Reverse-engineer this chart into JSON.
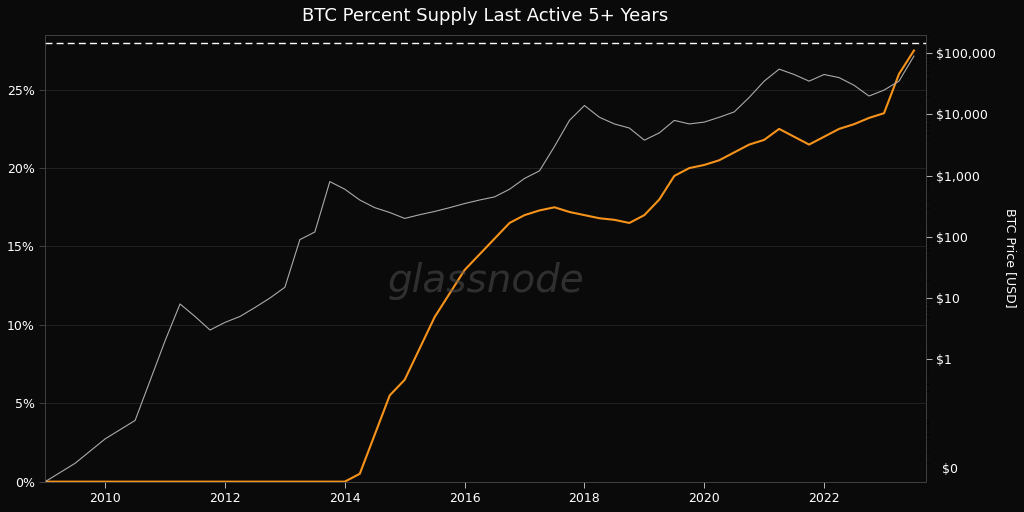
{
  "title": "BTC Percent Supply Last Active 5+ Years",
  "bg_color": "#0a0a0a",
  "text_color": "#ffffff",
  "watermark": "glassnode",
  "left_ylabel": "",
  "right_ylabel": "BTC Price [USD]",
  "left_yticks": [
    0,
    5,
    10,
    15,
    20,
    25
  ],
  "left_ytick_labels": [
    "0%",
    "5%",
    "10%",
    "15%",
    "20%",
    "25%"
  ],
  "left_ylim": [
    0,
    28.5
  ],
  "right_yticks_log": [
    0,
    1,
    10,
    100,
    1000,
    10000,
    100000
  ],
  "right_ytick_labels": [
    "$0",
    "$1",
    "$10",
    "$100",
    "$1,000",
    "$10,000",
    "$100,000"
  ],
  "dashed_line_y": 28.0,
  "orange_color": "#f7931a",
  "gray_color": "#aaaaaa",
  "orange_linewidth": 1.5,
  "gray_linewidth": 0.8,
  "years_x": [
    2009.0,
    2009.5,
    2010.0,
    2010.5,
    2011.0,
    2011.25,
    2011.5,
    2011.75,
    2012.0,
    2012.25,
    2012.5,
    2012.75,
    2013.0,
    2013.25,
    2013.5,
    2013.75,
    2014.0,
    2014.25,
    2014.5,
    2014.75,
    2015.0,
    2015.25,
    2015.5,
    2015.75,
    2016.0,
    2016.25,
    2016.5,
    2016.75,
    2017.0,
    2017.25,
    2017.5,
    2017.75,
    2018.0,
    2018.25,
    2018.5,
    2018.75,
    2019.0,
    2019.25,
    2019.5,
    2019.75,
    2020.0,
    2020.25,
    2020.5,
    2020.75,
    2021.0,
    2021.25,
    2021.5,
    2021.75,
    2022.0,
    2022.25,
    2022.5,
    2022.75,
    2023.0,
    2023.25,
    2023.5
  ],
  "orange_y": [
    0.0,
    0.0,
    0.0,
    0.0,
    0.0,
    0.0,
    0.0,
    0.0,
    0.0,
    0.0,
    0.0,
    0.0,
    0.0,
    0.0,
    0.0,
    0.0,
    0.0,
    0.5,
    3.0,
    5.5,
    6.5,
    8.5,
    10.5,
    12.0,
    13.5,
    14.5,
    15.5,
    16.5,
    17.0,
    17.3,
    17.5,
    17.2,
    17.0,
    16.8,
    16.7,
    16.5,
    17.0,
    18.0,
    19.5,
    20.0,
    20.2,
    20.5,
    21.0,
    21.5,
    21.8,
    22.5,
    22.0,
    21.5,
    22.0,
    22.5,
    22.8,
    23.2,
    23.5,
    26.0,
    27.5
  ],
  "gray_price_y": [
    0.01,
    0.02,
    0.05,
    0.1,
    2.0,
    8.0,
    5.0,
    3.0,
    4.0,
    5.0,
    7.0,
    10.0,
    15.0,
    90.0,
    120.0,
    800.0,
    600.0,
    400.0,
    300.0,
    250.0,
    200.0,
    230.0,
    260.0,
    300.0,
    350.0,
    400.0,
    450.0,
    600.0,
    900.0,
    1200.0,
    3000.0,
    8000.0,
    14000.0,
    9000.0,
    7000.0,
    6000.0,
    3800.0,
    5000.0,
    8000.0,
    7000.0,
    7500.0,
    9000.0,
    11000.0,
    19000.0,
    35000.0,
    55000.0,
    45000.0,
    35000.0,
    45000.0,
    40000.0,
    30000.0,
    20000.0,
    25000.0,
    35000.0,
    90000.0
  ],
  "xlim": [
    2009.0,
    2023.7
  ],
  "xtick_years": [
    2010,
    2012,
    2014,
    2016,
    2018,
    2020,
    2022
  ]
}
